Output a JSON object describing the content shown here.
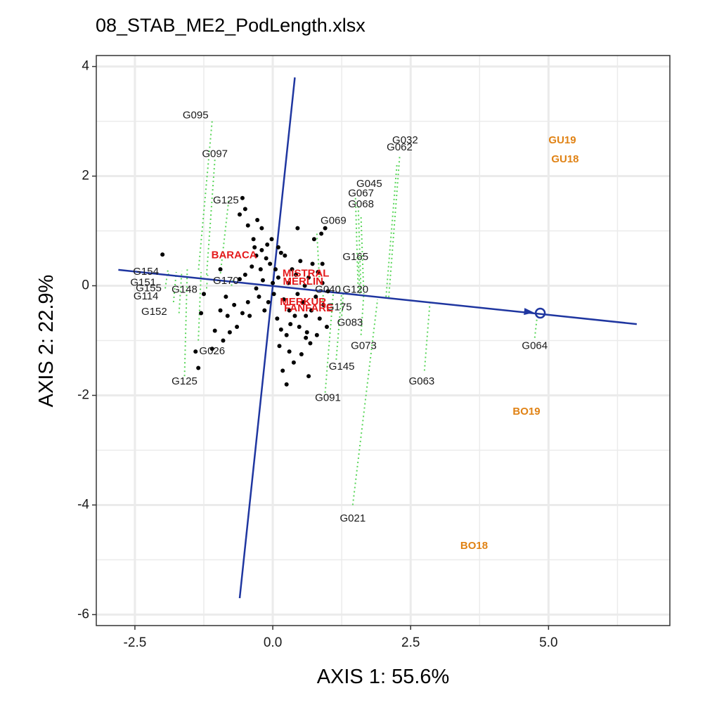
{
  "chart_data": {
    "type": "scatter",
    "title": "08_STAB_ME2_PodLength.xlsx",
    "xlabel": "AXIS 1: 55.6%",
    "ylabel": "AXIS 2: 22.9%",
    "xlim": [
      -3.2,
      7.2
    ],
    "ylim": [
      -6.2,
      4.2
    ],
    "x_ticks": [
      -2.5,
      0.0,
      2.5,
      5.0
    ],
    "x_tick_labels": [
      "-2.5",
      "0.0",
      "2.5",
      "5.0"
    ],
    "y_ticks": [
      -6,
      -4,
      -2,
      0,
      2,
      4
    ],
    "y_tick_labels": [
      "-6",
      "-4",
      "-2",
      "0",
      "2",
      "4"
    ],
    "grid": true,
    "colors": {
      "genotype_label": "#1a1a1a",
      "entry_label": "#e41a1c",
      "environment_label": "#e08214",
      "axis_line": "#1f36a0",
      "projection": "#5ad65a",
      "point": "#000000"
    },
    "average_environment_axis": {
      "abscissa": [
        [
          -2.8,
          0.29
        ],
        [
          6.6,
          -0.7
        ]
      ],
      "ordinate": [
        [
          0.4,
          3.8
        ],
        [
          -0.6,
          -5.7
        ]
      ],
      "marker": [
        4.85,
        -0.5
      ]
    },
    "points": [
      [
        -2.0,
        0.57
      ],
      [
        -1.4,
        -1.2
      ],
      [
        -1.35,
        -1.5
      ],
      [
        -1.3,
        -0.5
      ],
      [
        -1.1,
        -1.15
      ],
      [
        -1.05,
        -0.82
      ],
      [
        -0.95,
        -0.45
      ],
      [
        -0.9,
        -1.0
      ],
      [
        -0.82,
        -0.55
      ],
      [
        -0.78,
        -0.85
      ],
      [
        -0.7,
        -0.35
      ],
      [
        -0.65,
        -0.75
      ],
      [
        -0.6,
        0.12
      ],
      [
        -0.55,
        -0.5
      ],
      [
        -0.5,
        0.2
      ],
      [
        -0.45,
        -0.3
      ],
      [
        -0.42,
        -0.55
      ],
      [
        -0.38,
        0.35
      ],
      [
        -0.35,
        0.85
      ],
      [
        -0.33,
        0.7
      ],
      [
        -0.3,
        0.55
      ],
      [
        -0.28,
        1.2
      ],
      [
        -0.25,
        -0.2
      ],
      [
        -0.22,
        0.3
      ],
      [
        -0.2,
        0.65
      ],
      [
        -0.18,
        0.1
      ],
      [
        -0.15,
        -0.45
      ],
      [
        -0.12,
        0.5
      ],
      [
        -0.1,
        0.75
      ],
      [
        -0.08,
        -0.3
      ],
      [
        -0.05,
        0.4
      ],
      [
        -0.02,
        0.85
      ],
      [
        0.0,
        0.05
      ],
      [
        0.02,
        -0.15
      ],
      [
        0.05,
        0.3
      ],
      [
        0.08,
        -0.6
      ],
      [
        0.1,
        0.15
      ],
      [
        0.12,
        -1.1
      ],
      [
        0.15,
        -0.8
      ],
      [
        0.18,
        -1.55
      ],
      [
        0.2,
        -0.25
      ],
      [
        0.22,
        0.55
      ],
      [
        0.25,
        -0.9
      ],
      [
        0.28,
        0.05
      ],
      [
        0.3,
        -0.45
      ],
      [
        0.32,
        -0.7
      ],
      [
        0.35,
        0.3
      ],
      [
        0.38,
        -1.4
      ],
      [
        0.4,
        -0.55
      ],
      [
        0.42,
        0.2
      ],
      [
        0.45,
        -0.15
      ],
      [
        0.48,
        -0.75
      ],
      [
        0.5,
        0.45
      ],
      [
        0.52,
        -1.25
      ],
      [
        0.55,
        -0.3
      ],
      [
        0.58,
        0.0
      ],
      [
        0.6,
        -0.55
      ],
      [
        0.62,
        -0.85
      ],
      [
        0.65,
        0.15
      ],
      [
        0.68,
        -1.05
      ],
      [
        0.7,
        -0.45
      ],
      [
        0.72,
        0.4
      ],
      [
        0.75,
        0.85
      ],
      [
        0.78,
        -0.2
      ],
      [
        0.8,
        -0.9
      ],
      [
        0.82,
        0.25
      ],
      [
        0.85,
        -0.6
      ],
      [
        0.88,
        0.95
      ],
      [
        0.9,
        0.05
      ],
      [
        0.92,
        -0.35
      ],
      [
        0.95,
        1.05
      ],
      [
        0.98,
        -0.75
      ],
      [
        1.0,
        -0.1
      ],
      [
        0.15,
        0.6
      ],
      [
        -0.6,
        1.3
      ],
      [
        -0.55,
        1.6
      ],
      [
        -0.5,
        1.4
      ],
      [
        -0.45,
        1.1
      ],
      [
        -0.2,
        1.05
      ],
      [
        0.45,
        1.05
      ],
      [
        -1.25,
        -0.15
      ],
      [
        -0.95,
        0.3
      ],
      [
        -0.85,
        -0.2
      ],
      [
        0.6,
        -0.95
      ],
      [
        0.25,
        -1.8
      ],
      [
        0.3,
        -1.2
      ],
      [
        0.9,
        0.4
      ],
      [
        -0.3,
        -0.05
      ],
      [
        0.1,
        0.7
      ],
      [
        0.65,
        -1.65
      ]
    ],
    "projections": [
      [
        -1.1,
        3.0,
        -1.35,
        0.25
      ],
      [
        -1.05,
        2.3,
        -1.2,
        0.2
      ],
      [
        -0.8,
        1.55,
        -0.95,
        0.22
      ],
      [
        -1.6,
        -1.65,
        -1.55,
        0.32
      ],
      [
        -1.35,
        -1.0,
        -1.3,
        0.25
      ],
      [
        -1.9,
        0.2,
        -1.85,
        0.25
      ],
      [
        -1.95,
        -0.05,
        -1.9,
        0.3
      ],
      [
        -1.8,
        -0.3,
        -1.75,
        0.25
      ],
      [
        -1.7,
        -0.5,
        -1.65,
        0.27
      ],
      [
        -0.75,
        0.0,
        -0.72,
        0.12
      ],
      [
        -1.2,
        -0.05,
        -1.18,
        0.2
      ],
      [
        0.8,
        0.95,
        0.85,
        0.05
      ],
      [
        1.5,
        1.6,
        1.55,
        -0.15
      ],
      [
        1.55,
        1.45,
        1.6,
        -0.15
      ],
      [
        1.6,
        1.25,
        1.65,
        -0.15
      ],
      [
        1.55,
        0.5,
        1.58,
        -0.15
      ],
      [
        2.3,
        2.35,
        2.1,
        -0.25
      ],
      [
        2.25,
        2.2,
        2.05,
        -0.25
      ],
      [
        1.2,
        0.0,
        1.22,
        -0.1
      ],
      [
        1.45,
        -4.0,
        1.9,
        -0.25
      ],
      [
        0.95,
        -1.95,
        1.1,
        -0.1
      ],
      [
        1.15,
        -1.35,
        1.25,
        -0.12
      ],
      [
        1.6,
        -0.9,
        1.65,
        -0.15
      ],
      [
        1.25,
        -0.55,
        1.28,
        -0.12
      ],
      [
        2.75,
        -1.55,
        2.85,
        -0.3
      ],
      [
        4.75,
        -0.95,
        4.8,
        -0.5
      ],
      [
        0.9,
        -0.35,
        0.92,
        -0.08
      ]
    ],
    "genotype_labels": [
      {
        "text": "G095",
        "x": -1.4,
        "y": 3.1
      },
      {
        "text": "G097",
        "x": -1.05,
        "y": 2.4
      },
      {
        "text": "G125",
        "x": -0.85,
        "y": 1.55
      },
      {
        "text": "G154",
        "x": -2.3,
        "y": 0.25
      },
      {
        "text": "G151",
        "x": -2.35,
        "y": 0.05
      },
      {
        "text": "G155",
        "x": -2.25,
        "y": -0.05
      },
      {
        "text": "G114",
        "x": -2.3,
        "y": -0.2
      },
      {
        "text": "G148",
        "x": -1.6,
        "y": -0.08
      },
      {
        "text": "G170",
        "x": -0.85,
        "y": 0.08
      },
      {
        "text": "G152",
        "x": -2.15,
        "y": -0.48
      },
      {
        "text": "G026",
        "x": -1.1,
        "y": -1.2
      },
      {
        "text": "G125",
        "x": -1.6,
        "y": -1.75
      },
      {
        "text": "G069",
        "x": 1.1,
        "y": 1.18
      },
      {
        "text": "G032",
        "x": 2.4,
        "y": 2.65
      },
      {
        "text": "G062",
        "x": 2.3,
        "y": 2.52
      },
      {
        "text": "G045",
        "x": 1.75,
        "y": 1.85
      },
      {
        "text": "G067",
        "x": 1.6,
        "y": 1.68
      },
      {
        "text": "G068",
        "x": 1.6,
        "y": 1.48
      },
      {
        "text": "G165",
        "x": 1.5,
        "y": 0.52
      },
      {
        "text": "G040",
        "x": 1.0,
        "y": -0.08
      },
      {
        "text": "G120",
        "x": 1.5,
        "y": -0.08
      },
      {
        "text": "G175",
        "x": 1.2,
        "y": -0.4
      },
      {
        "text": "G083",
        "x": 1.4,
        "y": -0.68
      },
      {
        "text": "G073",
        "x": 1.65,
        "y": -1.1
      },
      {
        "text": "G145",
        "x": 1.25,
        "y": -1.48
      },
      {
        "text": "G091",
        "x": 1.0,
        "y": -2.05
      },
      {
        "text": "G063",
        "x": 2.7,
        "y": -1.75
      },
      {
        "text": "G064",
        "x": 4.75,
        "y": -1.1
      },
      {
        "text": "G021",
        "x": 1.45,
        "y": -4.25
      }
    ],
    "entry_labels": [
      {
        "text": "BARACA",
        "x": -0.7,
        "y": 0.55
      },
      {
        "text": "MISTRAL",
        "x": 0.6,
        "y": 0.22
      },
      {
        "text": "MERLIN",
        "x": 0.55,
        "y": 0.07
      },
      {
        "text": "MERKUR",
        "x": 0.55,
        "y": -0.3
      },
      {
        "text": "FANFARE",
        "x": 0.65,
        "y": -0.42
      }
    ],
    "environment_labels": [
      {
        "text": "GU19",
        "x": 5.25,
        "y": 2.65
      },
      {
        "text": "GU18",
        "x": 5.3,
        "y": 2.3
      },
      {
        "text": "BO19",
        "x": 4.6,
        "y": -2.3
      },
      {
        "text": "BO18",
        "x": 3.65,
        "y": -4.75
      }
    ]
  }
}
